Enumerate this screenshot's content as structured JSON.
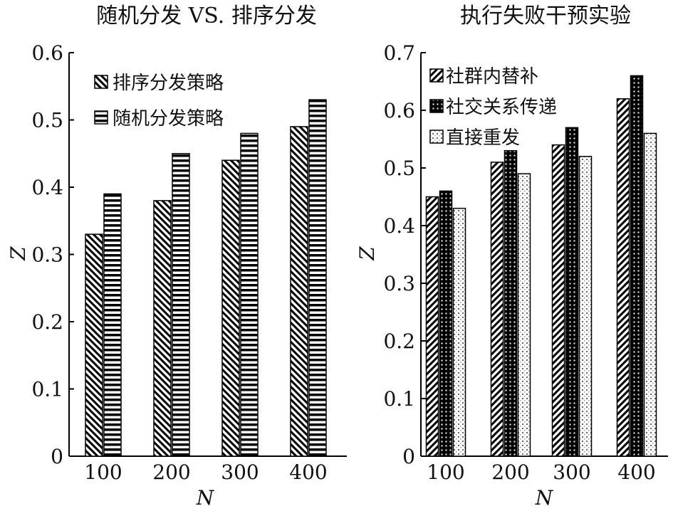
{
  "chart_data": [
    {
      "type": "bar",
      "title": "随机分发 VS. 排序分发",
      "xlabel": "N",
      "ylabel": "Z",
      "categories": [
        "100",
        "200",
        "300",
        "400"
      ],
      "ylim": [
        0,
        0.6
      ],
      "yticks": [
        "0",
        "0.1",
        "0.2",
        "0.3",
        "0.4",
        "0.5",
        "0.6"
      ],
      "grid": false,
      "legend_position": "top-left",
      "series": [
        {
          "name": "排序分发策略",
          "pattern": "diag-back",
          "values": [
            0.33,
            0.38,
            0.44,
            0.49
          ]
        },
        {
          "name": "随机分发策略",
          "pattern": "horizontal",
          "values": [
            0.39,
            0.45,
            0.48,
            0.53
          ]
        }
      ]
    },
    {
      "type": "bar",
      "title": "执行失败干预实验",
      "xlabel": "N",
      "ylabel": "Z",
      "categories": [
        "100",
        "200",
        "300",
        "400"
      ],
      "ylim": [
        0,
        0.7
      ],
      "yticks": [
        "0",
        "0.1",
        "0.2",
        "0.3",
        "0.4",
        "0.5",
        "0.6",
        "0.7"
      ],
      "grid": false,
      "legend_position": "top-left",
      "series": [
        {
          "name": "社群内替补",
          "pattern": "diag-fwd",
          "values": [
            0.45,
            0.51,
            0.54,
            0.62
          ]
        },
        {
          "name": "社交关系传递",
          "pattern": "checker",
          "values": [
            0.46,
            0.53,
            0.57,
            0.66
          ]
        },
        {
          "name": "直接重发",
          "pattern": "dots",
          "values": [
            0.43,
            0.49,
            0.52,
            0.56
          ]
        }
      ]
    }
  ]
}
